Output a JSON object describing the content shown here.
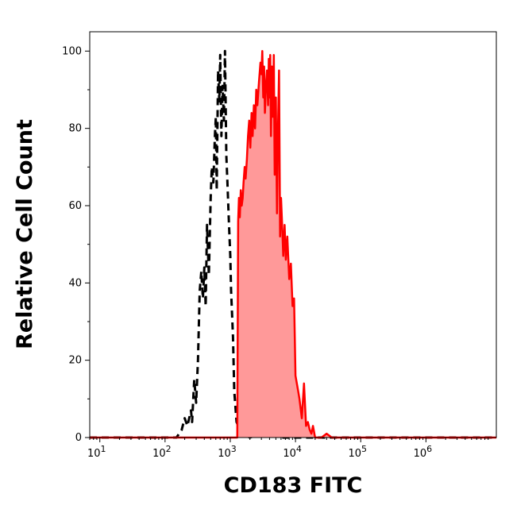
{
  "chart_data": {
    "type": "area",
    "title": "",
    "xlabel": "CD183 FITC",
    "ylabel": "Relative Cell Count",
    "x_scale": "log",
    "xlim": [
      7,
      12000000
    ],
    "ylim": [
      0,
      105
    ],
    "x_ticks": [
      {
        "value": 10,
        "base": "10",
        "exp": "1"
      },
      {
        "value": 100,
        "base": "10",
        "exp": "2"
      },
      {
        "value": 1000,
        "base": "10",
        "exp": "3"
      },
      {
        "value": 10000,
        "base": "10",
        "exp": "4"
      },
      {
        "value": 100000,
        "base": "10",
        "exp": "5"
      },
      {
        "value": 1000000,
        "base": "10",
        "exp": "6"
      }
    ],
    "y_ticks": [
      0,
      20,
      40,
      60,
      80,
      100
    ],
    "grid": false,
    "series": [
      {
        "style": "dashed",
        "color": "#000000",
        "fill": "none",
        "x": [
          7,
          150,
          180,
          200,
          220,
          250,
          260,
          280,
          300,
          320,
          340,
          360,
          380,
          400,
          420,
          440,
          470,
          500,
          520,
          550,
          580,
          600,
          620,
          650,
          680,
          700,
          730,
          760,
          800,
          830,
          870,
          900,
          950,
          1000,
          1030,
          1100,
          1150,
          1250,
          1500,
          2000,
          3000,
          6000,
          12000000
        ],
        "y": [
          0,
          0,
          2,
          5,
          3,
          7,
          4,
          15,
          9,
          20,
          38,
          43,
          36,
          44,
          34,
          55,
          42,
          62,
          70,
          66,
          78,
          83,
          64,
          95,
          87,
          99,
          78,
          91,
          82,
          100,
          73,
          67,
          56,
          47,
          38,
          26,
          12,
          4,
          1,
          0,
          1,
          0,
          0
        ]
      },
      {
        "style": "solid",
        "color": "#ff0000",
        "fill": "#ff9999",
        "x": [
          7,
          1000,
          1280,
          1320,
          1360,
          1400,
          1450,
          1500,
          1550,
          1600,
          1660,
          1720,
          1800,
          1870,
          1950,
          2030,
          2120,
          2200,
          2300,
          2400,
          2500,
          2600,
          2750,
          2900,
          3000,
          3100,
          3200,
          3300,
          3400,
          3500,
          3650,
          3800,
          3900,
          4000,
          4100,
          4200,
          4350,
          4500,
          4650,
          4800,
          5000,
          5200,
          5400,
          5600,
          5800,
          6000,
          6200,
          6500,
          6800,
          7100,
          7500,
          8000,
          8500,
          9000,
          9500,
          10000,
          10500,
          11000,
          11500,
          12500,
          13500,
          14500,
          15500,
          16500,
          17500,
          18500,
          20000,
          22000,
          25000,
          30000,
          36000,
          40000,
          100000,
          12000000
        ],
        "y": [
          0,
          0,
          0,
          56,
          62,
          57,
          64,
          60,
          62,
          66,
          70,
          67,
          72,
          78,
          82,
          75,
          84,
          78,
          86,
          80,
          90,
          86,
          92,
          97,
          94,
          100,
          88,
          96,
          84,
          90,
          95,
          86,
          98,
          88,
          99,
          78,
          96,
          83,
          99,
          68,
          88,
          58,
          80,
          95,
          52,
          62,
          56,
          47,
          55,
          46,
          52,
          41,
          45,
          34,
          36,
          16,
          14,
          12,
          10,
          5,
          14,
          3,
          4,
          2,
          1,
          3,
          0,
          0,
          0,
          1,
          0,
          0,
          0,
          0
        ]
      }
    ]
  }
}
